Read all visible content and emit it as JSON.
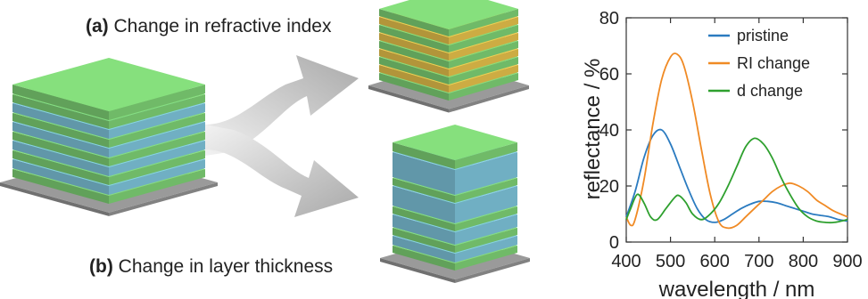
{
  "captions": {
    "a": {
      "tag": "(a)",
      "text": "Change in refractive index"
    },
    "b": {
      "tag": "(b)",
      "text": "Change in layer thickness"
    }
  },
  "colors": {
    "green": "#7ccf74",
    "blue": "#7cc2d9",
    "yellow": "#e4bf4a",
    "substrate": "#8f8f8f",
    "arrow": "#c9c9c9"
  },
  "icons": [
    "curved-split-arrow"
  ],
  "chart_data": {
    "type": "line",
    "xlabel": "wavelength / nm",
    "ylabel": "reflectance / %",
    "xlim": [
      400,
      900
    ],
    "ylim": [
      0,
      80
    ],
    "xticks": [
      400,
      500,
      600,
      700,
      800,
      900
    ],
    "yticks": [
      0,
      20,
      40,
      60,
      80
    ],
    "grid": false,
    "legend_position": "top-right",
    "series": [
      {
        "name": "pristine",
        "color": "#2b7bc0",
        "x": [
          400,
          420,
          440,
          460,
          480,
          500,
          520,
          540,
          560,
          580,
          600,
          620,
          640,
          660,
          680,
          700,
          720,
          740,
          760,
          780,
          800,
          820,
          840,
          860,
          880,
          900
        ],
        "y": [
          9,
          18,
          30,
          38,
          40,
          35,
          27,
          19,
          12,
          8,
          7,
          8,
          10,
          12,
          13.5,
          14.5,
          14.5,
          14,
          13,
          12,
          11,
          10,
          9.5,
          9,
          8,
          7.5
        ]
      },
      {
        "name": "RI change",
        "color": "#f08a24",
        "x": [
          400,
          410,
          420,
          440,
          460,
          480,
          500,
          515,
          530,
          550,
          570,
          590,
          610,
          630,
          650,
          670,
          690,
          710,
          730,
          750,
          770,
          790,
          810,
          830,
          850,
          870,
          900
        ],
        "y": [
          9,
          6,
          8,
          22,
          42,
          58,
          66,
          67,
          63,
          50,
          33,
          17,
          7,
          5,
          6,
          9,
          12,
          15,
          18,
          20,
          21,
          20,
          18,
          15,
          13,
          11,
          9
        ]
      },
      {
        "name": "d change",
        "color": "#2ea02e",
        "x": [
          400,
          410,
          425,
          440,
          455,
          470,
          490,
          510,
          520,
          535,
          550,
          570,
          590,
          610,
          630,
          650,
          670,
          690,
          710,
          730,
          750,
          770,
          790,
          810,
          830,
          850,
          870,
          900
        ],
        "y": [
          8,
          12,
          17,
          14,
          9,
          8,
          12,
          16,
          16.5,
          14,
          10,
          8,
          10,
          14,
          20,
          27,
          34,
          37,
          35,
          30,
          23,
          17,
          12,
          9,
          7.5,
          7,
          7,
          8
        ]
      }
    ]
  }
}
